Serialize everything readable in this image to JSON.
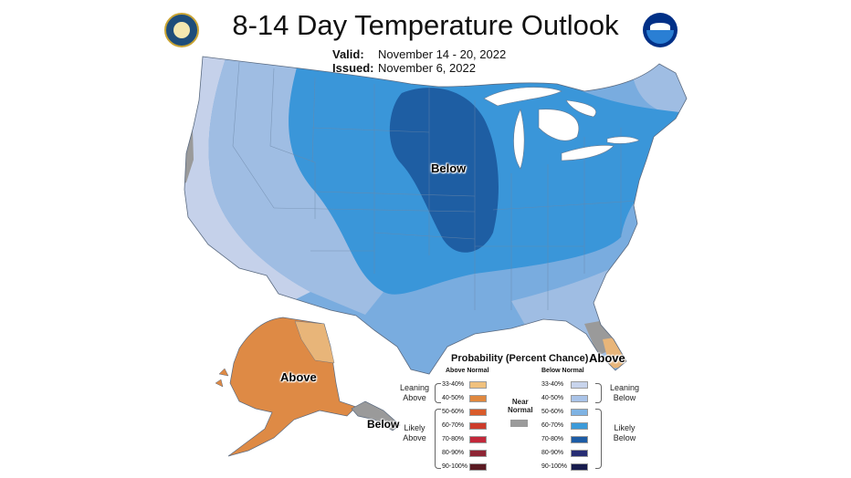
{
  "header": {
    "title": "8-14 Day Temperature Outlook",
    "valid_label": "Valid:",
    "valid_value": "November 14 - 20, 2022",
    "issued_label": "Issued:",
    "issued_value": "November 6, 2022"
  },
  "seals": {
    "left": "department-of-commerce-seal",
    "right": "noaa-logo",
    "right_text": "NOAA"
  },
  "map": {
    "regions": [
      {
        "label": "Below",
        "category": "Below Normal",
        "probability": "70-80%"
      },
      {
        "label": "Above",
        "category": "Above Normal",
        "region": "Alaska",
        "probability": "40-50%"
      },
      {
        "label": "Below",
        "category": "Below Normal",
        "region": "Southeast Alaska",
        "probability": "near normal"
      },
      {
        "label": "Above",
        "category": "Above Normal",
        "region": "South Florida",
        "probability": "33-40%"
      }
    ],
    "colors": {
      "below_33_40": "#c5d1ea",
      "below_40_50": "#9fbde3",
      "below_50_60": "#79acdf",
      "below_60_70": "#3a96d9",
      "below_70_80": "#1e5ea3",
      "above_33_40": "#e8b579",
      "above_40_50": "#de8a45",
      "near_normal": "#9a9a9a",
      "outline": "#6a7a90",
      "lakes": "#ffffff"
    }
  },
  "legend": {
    "title": "Probability (Percent Chance)",
    "above_header": "Above Normal",
    "below_header": "Below Normal",
    "above_levels": [
      {
        "pct": "33-40%",
        "color": "#f0c17e"
      },
      {
        "pct": "40-50%",
        "color": "#e0883e"
      },
      {
        "pct": "50-60%",
        "color": "#d95b2b"
      },
      {
        "pct": "60-70%",
        "color": "#cc3b2a"
      },
      {
        "pct": "70-80%",
        "color": "#c2283a"
      },
      {
        "pct": "80-90%",
        "color": "#8e2534"
      },
      {
        "pct": "90-100%",
        "color": "#5a1a22"
      }
    ],
    "below_levels": [
      {
        "pct": "33-40%",
        "color": "#c8d4ec"
      },
      {
        "pct": "40-50%",
        "color": "#a9c3e8"
      },
      {
        "pct": "50-60%",
        "color": "#7fb3e3"
      },
      {
        "pct": "60-70%",
        "color": "#3c9ad9"
      },
      {
        "pct": "70-80%",
        "color": "#1d5ca5"
      },
      {
        "pct": "80-90%",
        "color": "#272d73"
      },
      {
        "pct": "90-100%",
        "color": "#171b4d"
      }
    ],
    "near_normal_label_1": "Near",
    "near_normal_label_2": "Normal",
    "near_normal_color": "#9b9b9b",
    "leaning_above_1": "Leaning",
    "leaning_above_2": "Above",
    "likely_above_1": "Likely",
    "likely_above_2": "Above",
    "leaning_below_1": "Leaning",
    "leaning_below_2": "Below",
    "likely_below_1": "Likely",
    "likely_below_2": "Below"
  }
}
